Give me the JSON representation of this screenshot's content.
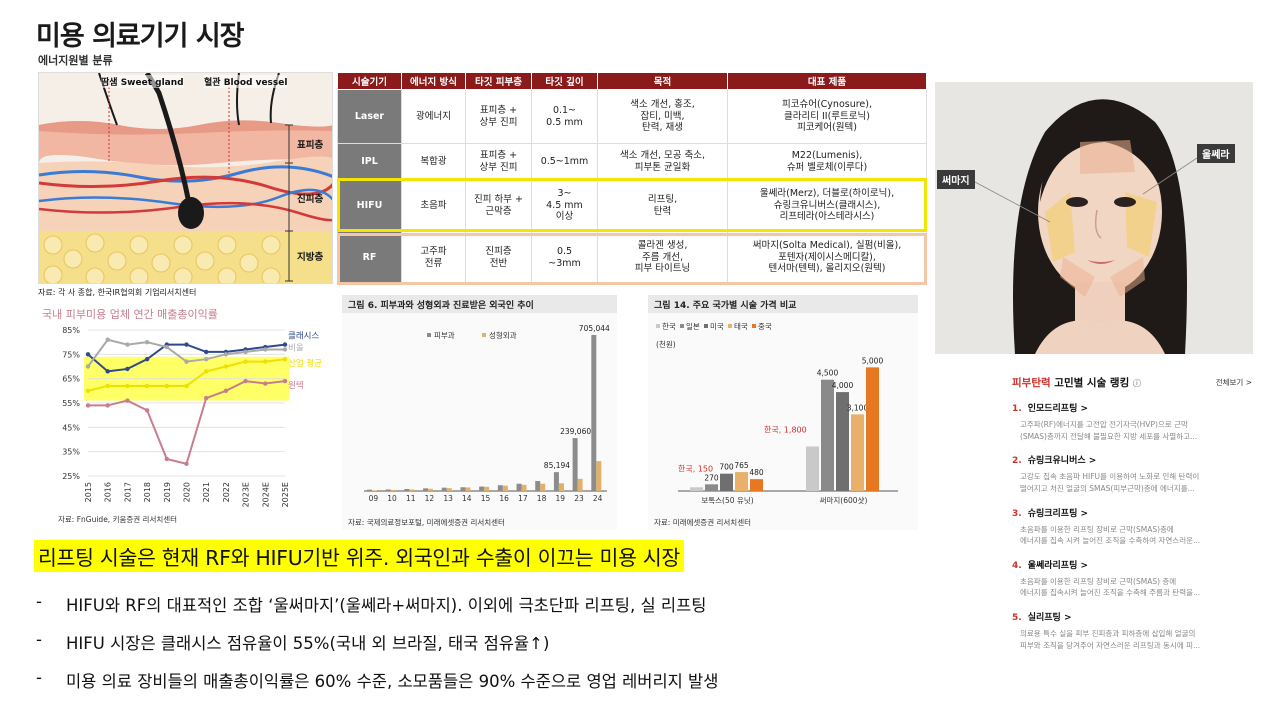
{
  "page": {
    "title": "미용 의료기기 시장",
    "subtitle": "에너지원별 분류"
  },
  "skin_diagram": {
    "labels": [
      "땀샘 Sweet gland",
      "혈관 Blood vessel",
      "표피층",
      "진피층",
      "지방층"
    ],
    "source": "자료: 각 사 종합, 한국IR협의회 기업리서치센터"
  },
  "table": {
    "headers": [
      "시술기기",
      "에너지 방식",
      "타깃 피부층",
      "타깃 깊이",
      "목적",
      "대표 제품"
    ],
    "rows": [
      {
        "name": "Laser",
        "energy": "광에너지",
        "layer": "표피층 +\n상부 진피",
        "depth": "0.1~\n0.5 mm",
        "purpose": "색소 개선, 홍조,\n잡티, 미백,\n탄력, 재생",
        "products": "피코슈어(Cynosure),\n클라리티 II(루트로닉)\n피코케어(원텍)"
      },
      {
        "name": "IPL",
        "energy": "복합광",
        "layer": "표피층 +\n상부 진피",
        "depth": "0.5~1mm",
        "purpose": "색소 개선, 모공 축소,\n피부톤 균일화",
        "products": "M22(Lumenis),\n슈퍼 벨로체(이루다)"
      },
      {
        "name": "HIFU",
        "energy": "초음파",
        "layer": "진피 하부 +\n근막층",
        "depth": "3~\n4.5 mm\n이상",
        "purpose": "리프팅,\n탄력",
        "products": "울쎄라(Merz), 더블로(하이로닉),\n슈링크유니버스(클래시스),\n리프테라(아스테라시스)"
      },
      {
        "name": "RF",
        "energy": "고주파\n전류",
        "layer": "진피층\n전반",
        "depth": "0.5\n~3mm",
        "purpose": "콜라겐 생성,\n주름 개선,\n피부 타이트닝",
        "products": "써마지(Solta Medical), 실펌(비올),\n포텐자(제이시스메디칼),\n텐서마(텐텍), 올리지오(원텍)"
      }
    ]
  },
  "chart1": {
    "title": "국내 피부미용 업체 연간 매출총이익률",
    "source": "자료: FnGuide, 키움증권 리서치센터",
    "colors": {
      "클래시스": "#2e4a8a",
      "비올": "#a9a9a9",
      "산업 평균": "#f0e000",
      "원텍": "#c77d8e",
      "highlight": "#ffff33"
    }
  },
  "chart2": {
    "title": "그림 6. 피부과와 성형외과 진료받은 외국인 추이",
    "source": "자료: 국제의료정보포털, 미래에셋증권 리서치센터",
    "legend": [
      "피부과",
      "성형외과"
    ],
    "annotations": [
      "705,044",
      "239,060",
      "85,194"
    ]
  },
  "chart3": {
    "title": "그림 14. 주요 국가별 시술 가격 비교",
    "source": "자료: 미래에셋증권 리서치센터",
    "legend": [
      "한국",
      "일본",
      "미국",
      "태국",
      "중국"
    ],
    "unit": "(천원)",
    "korea_labels": [
      "한국, 150",
      "한국, 1,800"
    ]
  },
  "chart_data": [
    {
      "type": "line",
      "title": "국내 피부미용 업체 연간 매출총이익률",
      "x": [
        "2015",
        "2016",
        "2017",
        "2018",
        "2019",
        "2020",
        "2021",
        "2022",
        "2023E",
        "2024E",
        "2025E"
      ],
      "ylim": [
        25,
        85
      ],
      "yticks": [
        "25%",
        "35%",
        "45%",
        "55%",
        "65%",
        "75%",
        "85%"
      ],
      "series": [
        {
          "name": "클래시스",
          "values": [
            75,
            68,
            69,
            73,
            79,
            79,
            76,
            76,
            77,
            78,
            79
          ]
        },
        {
          "name": "비올",
          "values": [
            70,
            81,
            79,
            80,
            78,
            72,
            73,
            75,
            76,
            77,
            77
          ]
        },
        {
          "name": "산업 평균",
          "values": [
            60,
            62,
            62,
            62,
            62,
            62,
            68,
            70,
            72,
            72,
            73
          ]
        },
        {
          "name": "원텍",
          "values": [
            54,
            54,
            56,
            52,
            32,
            30,
            57,
            60,
            64,
            63,
            64
          ]
        }
      ]
    },
    {
      "type": "bar",
      "title": "그림 6. 피부과와 성형외과 진료받은 외국인 추이",
      "categories": [
        "09",
        "10",
        "11",
        "12",
        "13",
        "14",
        "15",
        "16",
        "17",
        "18",
        "19",
        "23",
        "24"
      ],
      "series": [
        {
          "name": "피부과",
          "values": [
            6000,
            7000,
            9000,
            12000,
            15000,
            17000,
            20000,
            26000,
            33000,
            45000,
            85194,
            239060,
            705044
          ]
        },
        {
          "name": "성형외과",
          "values": [
            3000,
            5000,
            7000,
            10000,
            13000,
            16000,
            19000,
            24000,
            28000,
            33000,
            35000,
            55000,
            135000
          ]
        }
      ],
      "ylim": [
        0,
        750000
      ]
    },
    {
      "type": "bar",
      "title": "그림 14. 주요 국가별 시술 가격 비교",
      "categories": [
        "보톡스(50 유닛)",
        "써마지(600샷)"
      ],
      "series": [
        {
          "name": "한국",
          "values": [
            150,
            1800
          ]
        },
        {
          "name": "일본",
          "values": [
            270,
            4500
          ]
        },
        {
          "name": "미국",
          "values": [
            700,
            4000
          ]
        },
        {
          "name": "태국",
          "values": [
            765,
            3100
          ]
        },
        {
          "name": "중국",
          "values": [
            480,
            5000
          ]
        }
      ],
      "data_labels": [
        [
          "",
          "270",
          "700",
          "765",
          "480"
        ],
        [
          "",
          "4,500",
          "4,000",
          "3,100",
          "5,000"
        ]
      ],
      "ylim": [
        0,
        5500
      ]
    }
  ],
  "face": {
    "labels": [
      "써마지",
      "울쎄라"
    ]
  },
  "ranking": {
    "title_red": "피부탄력",
    "title_rest": "고민별 시술 랭킹",
    "info": "ⓘ",
    "view_all": "전체보기 >",
    "items": [
      {
        "num": "1.",
        "name": "인모드리프팅 >",
        "desc": [
          "고주파(RF)에너지를 고전압 전기자극(HVP)으로 근막",
          "(SMAS)층까지 전달해 불필요한 지방 세포를 사멸하고..."
        ]
      },
      {
        "num": "2.",
        "name": "슈링크유니버스 >",
        "desc": [
          "고강도 집속 초음파 HIFU를 이용하여 노화로 인해 탄력이",
          "떨어지고 처진 얼굴의 SMAS(피부근막)층에 에너지를..."
        ]
      },
      {
        "num": "3.",
        "name": "슈링크리프팅 >",
        "desc": [
          "초음파를 이용한 리프팅 장비로 근막(SMAS)층에",
          "에너지를 집속 시켜 늘어진 조직을 수축하여 자연스러운..."
        ]
      },
      {
        "num": "4.",
        "name": "울쎄라리프팅 >",
        "desc": [
          "초음파를 이용한 리프팅 장비로 근막(SMAS) 층에",
          "에너지를 집속시켜 늘어진 조직을 수축해 주름과 탄력을..."
        ]
      },
      {
        "num": "5.",
        "name": "실리프팅 >",
        "desc": [
          "의료용 특수 실을 피부 진피층과 피하층에 삽입해 얼굴의",
          "피부와 조직을 당겨주어 자연스러운 리프팅과 동시에 피..."
        ]
      }
    ]
  },
  "summary": {
    "headline": "리프팅 시술은 현재 RF와 HIFU기반 위주. 외국인과 수출이 이끄는 미용 시장",
    "bullets": [
      "HIFU와 RF의 대표적인 조합 ‘울써마지’(울쎄라+써마지). 이외에 극초단파 리프팅, 실 리프팅",
      "HIFU 시장은 클래시스 점유율이 55%(국내 외 브라질, 태국 점유율↑)",
      "미용 의료 장비들의 매출총이익률은 60% 수준, 소모품들은 90% 수준으로 영업 레버리지 발생"
    ]
  }
}
